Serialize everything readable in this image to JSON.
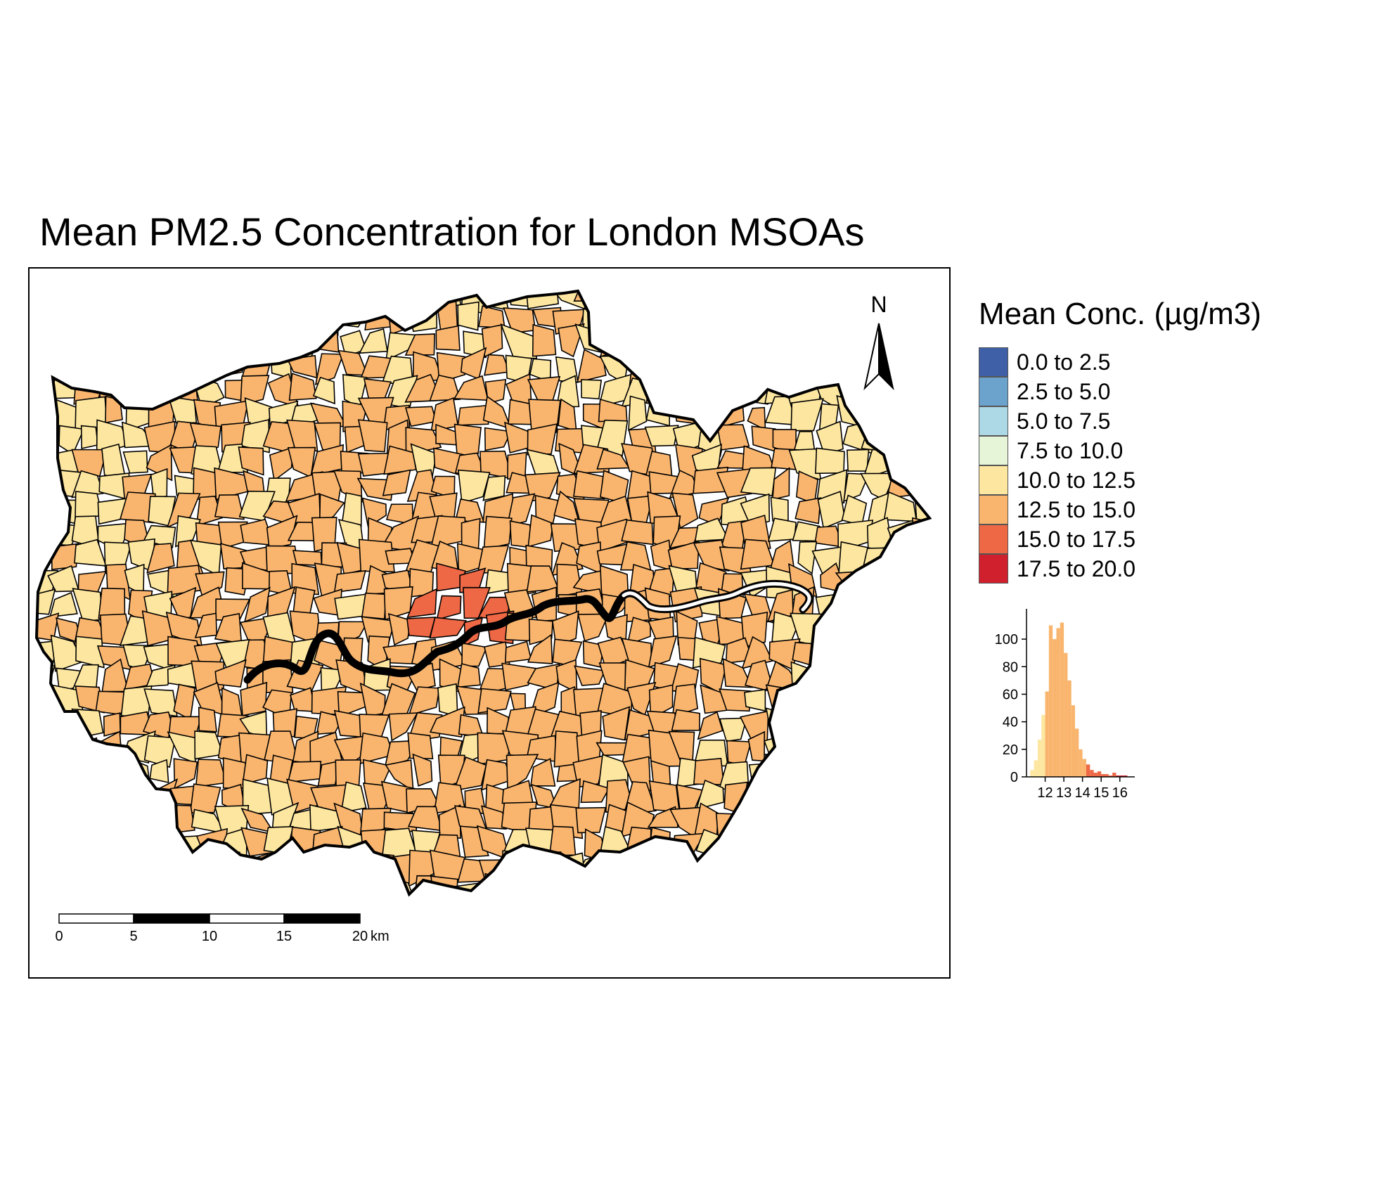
{
  "title": "Mean PM2.5 Concentration for London MSOAs",
  "north_arrow": {
    "label": "N"
  },
  "scale_bar": {
    "ticks": [
      "0",
      "5",
      "10",
      "15",
      "20"
    ],
    "unit": "km"
  },
  "colors": {
    "river": "#ffffff",
    "boundary": "#000000",
    "borough_fills": [
      "#fde7a0",
      "#f9b56e",
      "#f8b46c",
      "#f7b16a",
      "#fbd88f"
    ],
    "centre_fill": "#ee6845"
  },
  "legend": {
    "title": "Mean Conc. (µg/m3)",
    "items": [
      {
        "label": "0.0 to 2.5",
        "color": "#3f5fa6"
      },
      {
        "label": "2.5 to 5.0",
        "color": "#6ca3cd"
      },
      {
        "label": "5.0 to 7.5",
        "color": "#add8e6"
      },
      {
        "label": "7.5 to 10.0",
        "color": "#e6f4d8"
      },
      {
        "label": "10.0 to 12.5",
        "color": "#fde7a0"
      },
      {
        "label": "12.5 to 15.0",
        "color": "#f9b56e"
      },
      {
        "label": "15.0 to 17.5",
        "color": "#ee6845"
      },
      {
        "label": "17.5 to 20.0",
        "color": "#d0202d"
      }
    ]
  },
  "chart_data": {
    "type": "bar",
    "title": "",
    "xlabel": "",
    "ylabel": "",
    "x_ticks": [
      "12",
      "13",
      "14",
      "15",
      "16"
    ],
    "y_ticks": [
      "0",
      "20",
      "40",
      "60",
      "80",
      "100"
    ],
    "xlim": [
      11.0,
      16.8
    ],
    "ylim": [
      0,
      122
    ],
    "bin_width": 0.2,
    "bins": [
      {
        "x0": 11.2,
        "count": 5,
        "color": "#fde7a0"
      },
      {
        "x0": 11.4,
        "count": 12,
        "color": "#fde7a0"
      },
      {
        "x0": 11.6,
        "count": 27,
        "color": "#fde7a0"
      },
      {
        "x0": 11.8,
        "count": 45,
        "color": "#fde7a0"
      },
      {
        "x0": 12.0,
        "count": 62,
        "color": "#f9b56e"
      },
      {
        "x0": 12.2,
        "count": 110,
        "color": "#f9b56e"
      },
      {
        "x0": 12.4,
        "count": 100,
        "color": "#f9b56e"
      },
      {
        "x0": 12.6,
        "count": 108,
        "color": "#f9b56e"
      },
      {
        "x0": 12.8,
        "count": 112,
        "color": "#f9b56e"
      },
      {
        "x0": 13.0,
        "count": 90,
        "color": "#f9b56e"
      },
      {
        "x0": 13.2,
        "count": 70,
        "color": "#f9b56e"
      },
      {
        "x0": 13.4,
        "count": 52,
        "color": "#f9b56e"
      },
      {
        "x0": 13.6,
        "count": 35,
        "color": "#f9b56e"
      },
      {
        "x0": 13.8,
        "count": 20,
        "color": "#f9b56e"
      },
      {
        "x0": 14.0,
        "count": 13,
        "color": "#f9b56e"
      },
      {
        "x0": 14.2,
        "count": 9,
        "color": "#ee6845"
      },
      {
        "x0": 14.4,
        "count": 5,
        "color": "#ee6845"
      },
      {
        "x0": 14.6,
        "count": 3,
        "color": "#ee6845"
      },
      {
        "x0": 14.8,
        "count": 4,
        "color": "#ee6845"
      },
      {
        "x0": 15.0,
        "count": 2,
        "color": "#ee6845"
      },
      {
        "x0": 15.2,
        "count": 2,
        "color": "#ee6845"
      },
      {
        "x0": 15.4,
        "count": 1,
        "color": "#ee6845"
      },
      {
        "x0": 15.6,
        "count": 3,
        "color": "#ee6845"
      },
      {
        "x0": 15.8,
        "count": 1,
        "color": "#d0202d"
      },
      {
        "x0": 16.0,
        "count": 1,
        "color": "#d0202d"
      },
      {
        "x0": 16.2,
        "count": 1,
        "color": "#d0202d"
      }
    ]
  }
}
